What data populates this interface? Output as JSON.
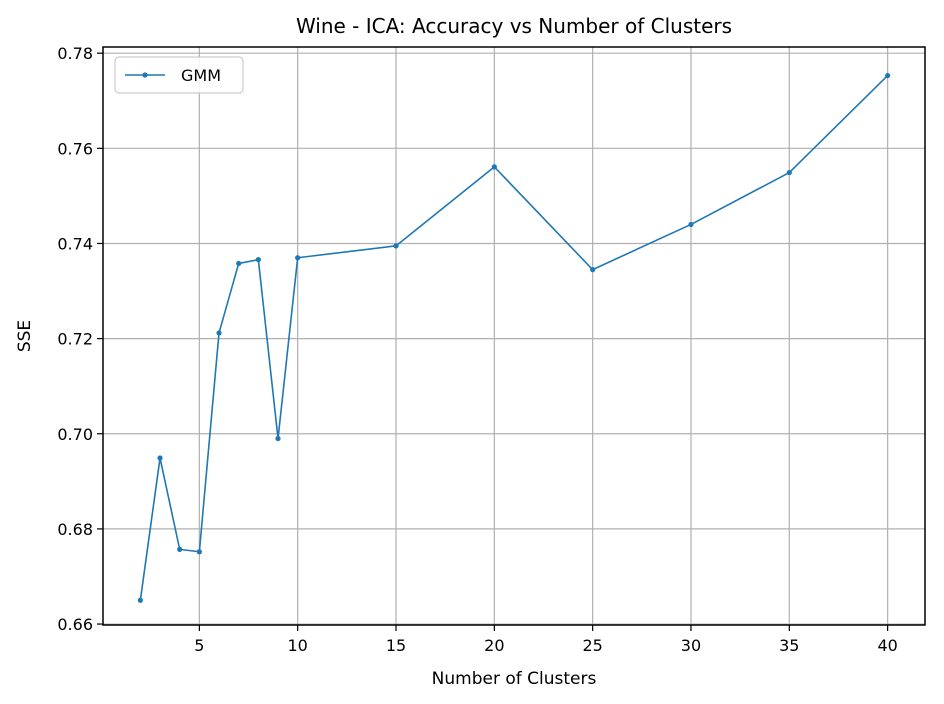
{
  "chart_data": {
    "type": "line",
    "title": "Wine - ICA: Accuracy vs Number of Clusters",
    "xlabel": "Number of Clusters",
    "ylabel": "SSE",
    "xlim": [
      0.1,
      41.9
    ],
    "ylim": [
      0.6598,
      0.7813
    ],
    "xticks": [
      5,
      10,
      15,
      20,
      25,
      30,
      35,
      40
    ],
    "yticks": [
      0.66,
      0.68,
      0.7,
      0.72,
      0.74,
      0.76,
      0.78
    ],
    "ytick_labels": [
      "0.66",
      "0.68",
      "0.70",
      "0.72",
      "0.74",
      "0.76",
      "0.78"
    ],
    "grid": true,
    "legend_position": "top-left",
    "series": [
      {
        "name": "GMM",
        "color": "#1f77b4",
        "marker": "point",
        "x": [
          2,
          3,
          4,
          5,
          6,
          7,
          8,
          9,
          10,
          15,
          20,
          25,
          30,
          35,
          40
        ],
        "y": [
          0.665,
          0.6949,
          0.6757,
          0.6752,
          0.7212,
          0.7358,
          0.7366,
          0.699,
          0.737,
          0.7395,
          0.7561,
          0.7345,
          0.744,
          0.7549,
          0.7753
        ]
      }
    ]
  }
}
